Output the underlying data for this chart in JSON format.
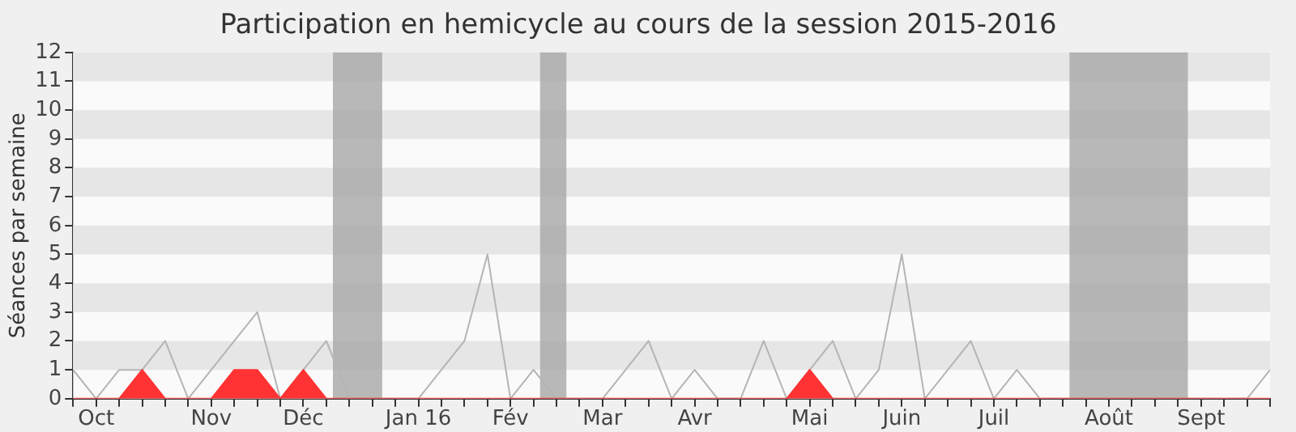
{
  "chart_data": {
    "type": "line",
    "title": "Participation en hemicycle au cours de la session 2015-2016",
    "ylabel": "Séances par semaine",
    "x": [
      "2015-09-24",
      "2015-10-01",
      "2015-10-08",
      "2015-10-15",
      "2015-10-22",
      "2015-10-29",
      "2015-11-05",
      "2015-11-12",
      "2015-11-19",
      "2015-11-26",
      "2015-12-03",
      "2015-12-10",
      "2015-12-17",
      "2015-12-24",
      "2015-12-31",
      "2016-01-07",
      "2016-01-14",
      "2016-01-21",
      "2016-01-28",
      "2016-02-04",
      "2016-02-11",
      "2016-02-18",
      "2016-02-25",
      "2016-03-03",
      "2016-03-10",
      "2016-03-17",
      "2016-03-24",
      "2016-03-31",
      "2016-04-07",
      "2016-04-14",
      "2016-04-21",
      "2016-04-28",
      "2016-05-05",
      "2016-05-12",
      "2016-05-19",
      "2016-05-26",
      "2016-06-02",
      "2016-06-09",
      "2016-06-16",
      "2016-06-23",
      "2016-06-30",
      "2016-07-07",
      "2016-07-14",
      "2016-07-21",
      "2016-07-28",
      "2016-08-04",
      "2016-08-11",
      "2016-08-18",
      "2016-08-25",
      "2016-09-01",
      "2016-09-08",
      "2016-09-15",
      "2016-09-22"
    ],
    "series": [
      {
        "color": "#b4b4b4",
        "values": [
          1,
          0,
          1,
          1,
          2,
          0,
          1,
          2,
          3,
          0,
          1,
          2,
          0,
          0,
          0,
          0,
          1,
          2,
          5,
          0,
          1,
          0,
          0,
          0,
          1,
          2,
          0,
          1,
          0,
          0,
          2,
          0,
          1,
          2,
          0,
          1,
          5,
          0,
          1,
          2,
          0,
          1,
          0,
          0,
          0,
          0,
          0,
          0,
          0,
          0,
          0,
          0,
          1
        ]
      },
      {
        "type": "area",
        "color": "#ff3333",
        "values": [
          0,
          0,
          0,
          1,
          0,
          0,
          0,
          1,
          1,
          0,
          1,
          0,
          0,
          0,
          0,
          0,
          0,
          0,
          0,
          0,
          0,
          0,
          0,
          0,
          0,
          0,
          0,
          0,
          0,
          0,
          0,
          0,
          1,
          0,
          0,
          0,
          0,
          0,
          0,
          0,
          0,
          0,
          0,
          0,
          0,
          0,
          0,
          0,
          0,
          0,
          0,
          0,
          0
        ]
      }
    ],
    "xlim": [
      "2015-09-24",
      "2016-09-22"
    ],
    "xticks": [
      {
        "value": "2015-09-24",
        "label": null
      },
      {
        "value": "2015-10-01",
        "label": "Oct"
      },
      {
        "value": "2015-10-08",
        "label": null
      },
      {
        "value": "2015-10-15",
        "label": null
      },
      {
        "value": "2015-10-22",
        "label": null
      },
      {
        "value": "2015-10-29",
        "label": null
      },
      {
        "value": "2015-11-05",
        "label": "Nov"
      },
      {
        "value": "2015-11-12",
        "label": null
      },
      {
        "value": "2015-11-19",
        "label": null
      },
      {
        "value": "2015-11-26",
        "label": null
      },
      {
        "value": "2015-12-03",
        "label": "Déc"
      },
      {
        "value": "2015-12-10",
        "label": null
      },
      {
        "value": "2015-12-17",
        "label": null
      },
      {
        "value": "2015-12-24",
        "label": null
      },
      {
        "value": "2015-12-31",
        "label": null
      },
      {
        "value": "2016-01-07",
        "label": "Jan 16"
      },
      {
        "value": "2016-01-14",
        "label": null
      },
      {
        "value": "2016-01-21",
        "label": null
      },
      {
        "value": "2016-01-28",
        "label": null
      },
      {
        "value": "2016-02-04",
        "label": "Fév"
      },
      {
        "value": "2016-02-11",
        "label": null
      },
      {
        "value": "2016-02-18",
        "label": null
      },
      {
        "value": "2016-02-25",
        "label": null
      },
      {
        "value": "2016-03-03",
        "label": "Mar"
      },
      {
        "value": "2016-03-10",
        "label": null
      },
      {
        "value": "2016-03-17",
        "label": null
      },
      {
        "value": "2016-03-24",
        "label": null
      },
      {
        "value": "2016-03-31",
        "label": "Avr"
      },
      {
        "value": "2016-04-07",
        "label": null
      },
      {
        "value": "2016-04-14",
        "label": null
      },
      {
        "value": "2016-04-21",
        "label": null
      },
      {
        "value": "2016-04-28",
        "label": null
      },
      {
        "value": "2016-05-05",
        "label": "Mai"
      },
      {
        "value": "2016-05-12",
        "label": null
      },
      {
        "value": "2016-05-19",
        "label": null
      },
      {
        "value": "2016-05-26",
        "label": null
      },
      {
        "value": "2016-06-02",
        "label": "Juin"
      },
      {
        "value": "2016-06-09",
        "label": null
      },
      {
        "value": "2016-06-16",
        "label": null
      },
      {
        "value": "2016-06-23",
        "label": null
      },
      {
        "value": "2016-06-30",
        "label": "Juil"
      },
      {
        "value": "2016-07-07",
        "label": null
      },
      {
        "value": "2016-07-14",
        "label": null
      },
      {
        "value": "2016-07-21",
        "label": null
      },
      {
        "value": "2016-07-28",
        "label": null
      },
      {
        "value": "2016-08-04",
        "label": "Août"
      },
      {
        "value": "2016-08-11",
        "label": null
      },
      {
        "value": "2016-08-18",
        "label": null
      },
      {
        "value": "2016-08-25",
        "label": null
      },
      {
        "value": "2016-09-01",
        "label": "Sept"
      },
      {
        "value": "2016-09-08",
        "label": null
      },
      {
        "value": "2016-09-15",
        "label": null
      },
      {
        "value": "2016-09-22",
        "label": null
      }
    ],
    "ylim": [
      0,
      12
    ],
    "yticks": [
      0,
      1,
      2,
      3,
      4,
      5,
      6,
      7,
      8,
      9,
      10,
      11,
      12
    ],
    "bands": [
      {
        "axis": "y",
        "from": 1,
        "to": 2,
        "color": "#e6e6e6"
      },
      {
        "axis": "y",
        "from": 3,
        "to": 4,
        "color": "#e6e6e6"
      },
      {
        "axis": "y",
        "from": 5,
        "to": 6,
        "color": "#e6e6e6"
      },
      {
        "axis": "y",
        "from": 7,
        "to": 8,
        "color": "#e6e6e6"
      },
      {
        "axis": "y",
        "from": 9,
        "to": 10,
        "color": "#e6e6e6"
      },
      {
        "axis": "y",
        "from": 11,
        "to": 12,
        "color": "#e6e6e6"
      },
      {
        "axis": "x",
        "from": "2015-12-12",
        "to": "2015-12-27",
        "color": "#a8a8a8"
      },
      {
        "axis": "x",
        "from": "2016-02-13",
        "to": "2016-02-21",
        "color": "#a8a8a8"
      },
      {
        "axis": "x",
        "from": "2016-07-23",
        "to": "2016-08-28",
        "color": "#a8a8a8"
      }
    ],
    "legend": false,
    "marker": "none",
    "line_style": "solid"
  }
}
